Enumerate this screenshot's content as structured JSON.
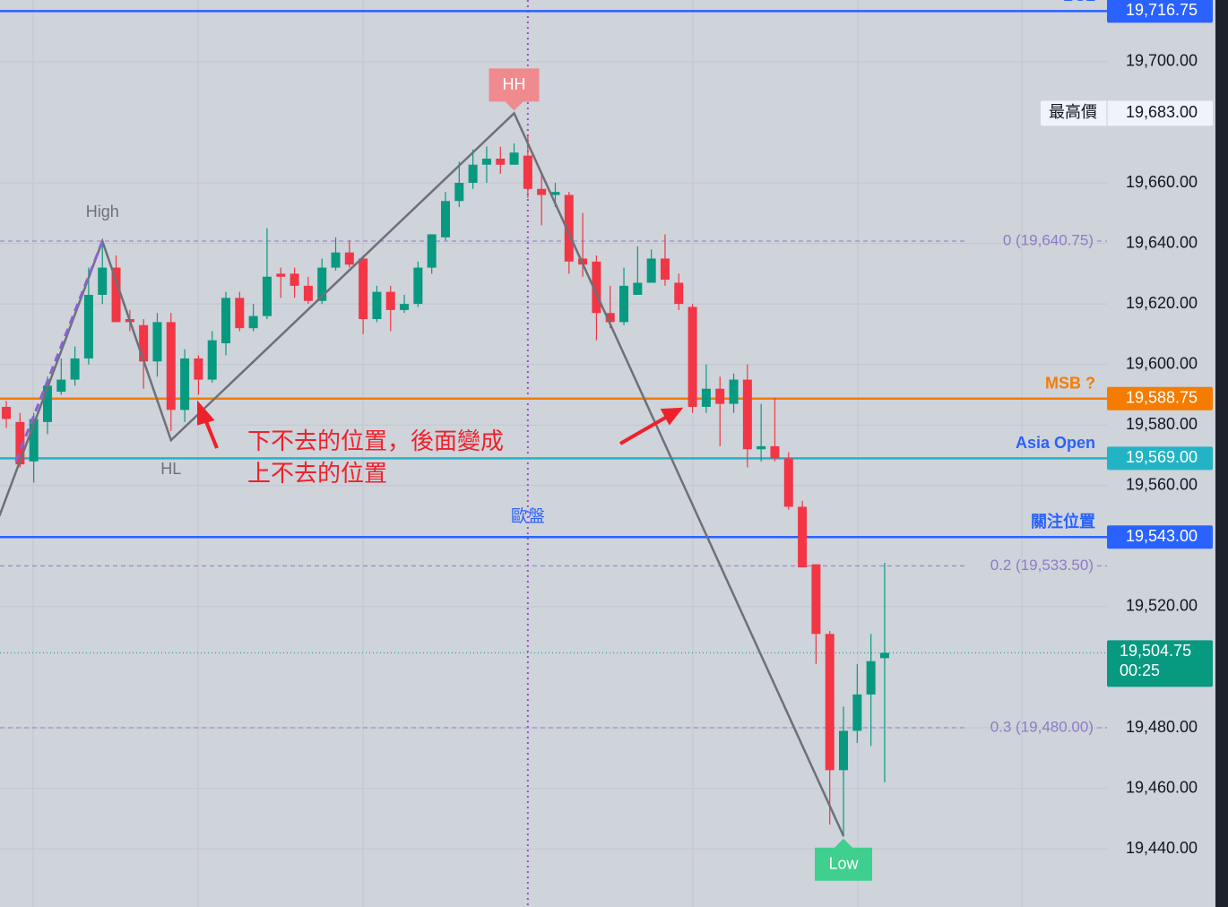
{
  "chart_data": {
    "type": "candlestick",
    "xlim": [
      -0.46,
      80.2
    ],
    "ylim": [
      19420.8,
      19720.4
    ],
    "yticks": [
      {
        "value": 19440,
        "label": "19,440.00"
      },
      {
        "value": 19460,
        "label": "19,460.00"
      },
      {
        "value": 19480,
        "label": "19,480.00"
      },
      {
        "value": 19520,
        "label": "19,520.00"
      },
      {
        "value": 19560,
        "label": "19,560.00"
      },
      {
        "value": 19580,
        "label": "19,580.00"
      },
      {
        "value": 19600,
        "label": "19,600.00"
      },
      {
        "value": 19620,
        "label": "19,620.00"
      },
      {
        "value": 19640,
        "label": "19,640.00"
      },
      {
        "value": 19660,
        "label": "19,660.00"
      },
      {
        "value": 19700,
        "label": "19,700.00"
      }
    ],
    "grid": true,
    "up_color": "#089981",
    "down_color": "#f23645",
    "candles": {
      "open": [
        19586,
        19581,
        19568,
        19581,
        19591,
        19595,
        19602,
        19623,
        19632,
        19615,
        19613,
        19601,
        19614,
        19585,
        19602,
        19595,
        19607,
        19622,
        19612,
        19616,
        19630,
        19630,
        19626,
        19621,
        19632,
        19637,
        19635,
        19615,
        19624,
        19618,
        19620,
        19632,
        19642,
        19654,
        19660,
        19666,
        19668,
        19666,
        19669,
        19658,
        19656,
        19656,
        19635,
        19634,
        19617,
        19614,
        19623,
        19627,
        19635,
        19627,
        19619,
        19586,
        19592,
        19587,
        19595,
        19572,
        19573,
        19569,
        19553,
        19534,
        19511,
        19466,
        19479,
        19491,
        19503
      ],
      "high": [
        19588,
        19584,
        19584,
        19596,
        19602,
        19606,
        19632,
        19640,
        19636,
        19618,
        19615,
        19617,
        19617,
        19605,
        19603,
        19611,
        19624,
        19624,
        19620,
        19645,
        19632,
        19632,
        19629,
        19635,
        19642,
        19641,
        19636,
        19626,
        19626,
        19623,
        19634,
        19643,
        19657,
        19667,
        19671,
        19672,
        19672,
        19673,
        19676,
        19663,
        19660,
        19657,
        19650,
        19636,
        19626,
        19632,
        19639,
        19638,
        19643,
        19630,
        19620,
        19600,
        19596,
        19597,
        19600,
        19587,
        19589,
        19571,
        19555,
        19534,
        19512,
        19487,
        19501,
        19511,
        19534.5
      ],
      "low": [
        19579,
        19566,
        19561,
        19577,
        19590,
        19593,
        19600,
        19620,
        19614,
        19611,
        19592,
        19596,
        19578,
        19581,
        19590,
        19594,
        19603,
        19611,
        19611,
        19615,
        19622,
        19622,
        19620,
        19620,
        19631,
        19632,
        19610,
        19614,
        19611,
        19617,
        19619,
        19630,
        19641,
        19652,
        19658,
        19660,
        19663,
        19666,
        19655,
        19646,
        19652,
        19630,
        19629,
        19608,
        19612,
        19613,
        19623,
        19627,
        19626,
        19618,
        19584,
        19584,
        19573,
        19584,
        19566,
        19568,
        19568,
        19552,
        19533,
        19501,
        19448,
        19444,
        19475,
        19474,
        19462
      ],
      "close": [
        19582,
        19567,
        19582,
        19593,
        19595,
        19602,
        19623,
        19632,
        19614,
        19614,
        19601,
        19614,
        19585,
        19602,
        19595,
        19608,
        19622,
        19612,
        19616,
        19629,
        19629,
        19626,
        19621,
        19632,
        19637,
        19633,
        19615,
        19624,
        19618,
        19620,
        19632,
        19643,
        19654,
        19660,
        19666,
        19668,
        19666,
        19670,
        19658,
        19656,
        19657,
        19634,
        19633,
        19617,
        19614,
        19626,
        19627,
        19635,
        19628,
        19620,
        19586,
        19592,
        19587,
        19595,
        19572,
        19573,
        19569,
        19553,
        19533,
        19511,
        19466,
        19479,
        19491,
        19502,
        19504.75
      ]
    },
    "levels": [
      {
        "name": "BSL",
        "value": 19716.75,
        "label": "19,716.75",
        "color": "#2962ff",
        "text_color": "#2962ff"
      },
      {
        "name": "MSB ?",
        "value": 19588.75,
        "label": "19,588.75",
        "color": "#f57c00",
        "text_color": "#f57c00"
      },
      {
        "name": "Asia Open",
        "value": 19569,
        "label": "19,569.00",
        "color": "#22b4c6",
        "text_color": "#2962ff"
      },
      {
        "name": "關注位置",
        "value": 19543,
        "label": "19,543.00",
        "color": "#2962ff",
        "text_color": "#2962ff"
      }
    ],
    "high_marker": {
      "name": "最高價",
      "value": 19683,
      "label": "19,683.00"
    },
    "fib_levels": [
      {
        "label": "0 (19,640.75)",
        "value": 19640.75
      },
      {
        "label": "0.2 (19,533.50)",
        "value": 19533.5
      },
      {
        "label": "0.3 (19,480.00)",
        "value": 19480
      }
    ],
    "current_price": {
      "value": 19504.75,
      "label": "19,504.75",
      "countdown": "00:25",
      "color": "#089981"
    },
    "zigzag": {
      "x": [
        -0.5,
        7,
        12,
        37,
        61
      ],
      "values": [
        19550,
        19640.75,
        19575,
        19683,
        19444.25
      ]
    },
    "trendline": {
      "x": [
        0.7,
        7
      ],
      "values": [
        19568,
        19640.75
      ]
    },
    "pivot_labels": {
      "high": "High",
      "hl": "HL",
      "hh": "HH",
      "low": "Low"
    },
    "session_line": {
      "x": 38,
      "label": "歐盤"
    },
    "annotation": [
      "下不去的位置，後面變成",
      "上不去的位置"
    ]
  }
}
